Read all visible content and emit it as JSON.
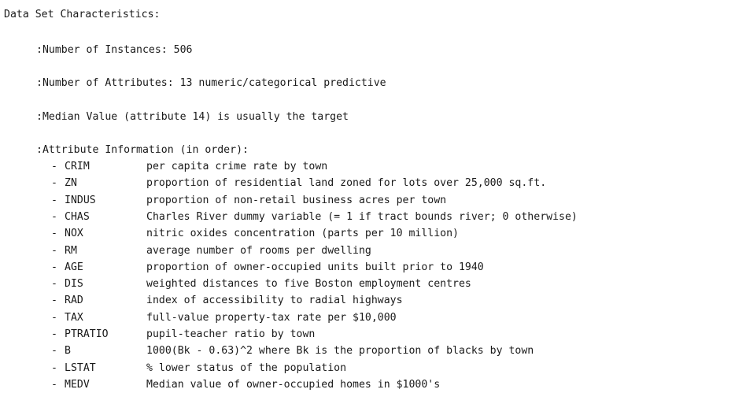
{
  "header_rule": "------",
  "section_title": "Data Set Characteristics:",
  "instances": ":Number of Instances: 506",
  "attributes": ":Number of Attributes: 13 numeric/categorical predictive",
  "median_value": ":Median Value (attribute 14) is usually the target",
  "attribute_info_heading": ":Attribute Information (in order):",
  "bullet": "-",
  "attribute_list": [
    {
      "code": "CRIM",
      "description": "per capita crime rate by town"
    },
    {
      "code": "ZN",
      "description": "proportion of residential land zoned for lots over 25,000 sq.ft."
    },
    {
      "code": "INDUS",
      "description": "proportion of non-retail business acres per town"
    },
    {
      "code": "CHAS",
      "description": "Charles River dummy variable (= 1 if tract bounds river; 0 otherwise)"
    },
    {
      "code": "NOX",
      "description": "nitric oxides concentration (parts per 10 million)"
    },
    {
      "code": "RM",
      "description": "average number of rooms per dwelling"
    },
    {
      "code": "AGE",
      "description": "proportion of owner-occupied units built prior to 1940"
    },
    {
      "code": "DIS",
      "description": "weighted distances to five Boston employment centres"
    },
    {
      "code": "RAD",
      "description": "index of accessibility to radial highways"
    },
    {
      "code": "TAX",
      "description": "full-value property-tax rate per $10,000"
    },
    {
      "code": "PTRATIO",
      "description": "pupil-teacher ratio by town"
    },
    {
      "code": "B",
      "description": "1000(Bk - 0.63)^2 where Bk is the proportion of blacks by town"
    },
    {
      "code": "LSTAT",
      "description": "% lower status of the population"
    },
    {
      "code": "MEDV",
      "description": "Median value of owner-occupied homes in $1000's"
    }
  ]
}
